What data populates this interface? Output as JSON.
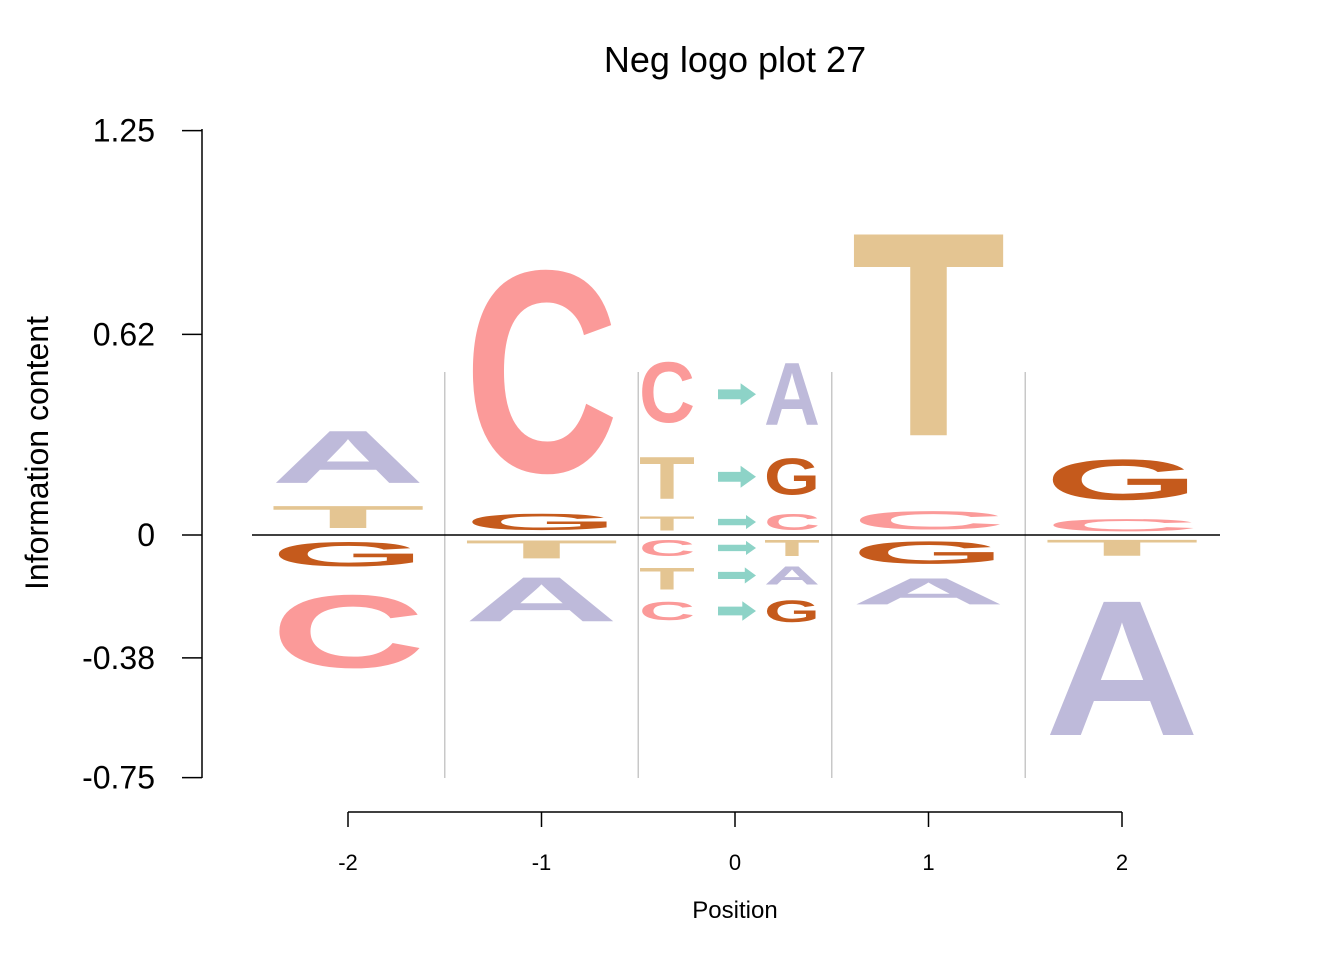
{
  "chart_data": {
    "type": "logo",
    "title": "Neg logo plot 27",
    "xlabel": "Position",
    "ylabel": "Information content",
    "yticks": [
      "1.25",
      "0.62",
      "0",
      "-0.38",
      "-0.75"
    ],
    "ytick_values": [
      1.25,
      0.62,
      0,
      -0.38,
      -0.75
    ],
    "ylim": [
      -0.75,
      1.25
    ],
    "xticks": [
      "-2",
      "-1",
      "0",
      "1",
      "2"
    ],
    "colors": {
      "A": "#bebada",
      "C": "#fb9a99",
      "G": "#c55a1c",
      "T": "#e4c592",
      "arrow": "#8dd3c7"
    },
    "positions": [
      {
        "x": -2,
        "stack": [
          {
            "letter": "A",
            "start": 0.11,
            "end": 0.37
          },
          {
            "letter": "T",
            "start": 0.0,
            "end": 0.11
          },
          {
            "letter": "G",
            "start": -0.12,
            "end": 0.0
          },
          {
            "letter": "C",
            "start": -0.48,
            "end": -0.12
          }
        ]
      },
      {
        "x": -1,
        "stack": [
          {
            "letter": "C",
            "start": 0.0,
            "end": 1.0
          },
          {
            "letter": "G",
            "start": 0.0,
            "end": 0.08
          },
          {
            "letter": "T",
            "start": -0.09,
            "end": 0.0
          },
          {
            "letter": "A",
            "start": -0.31,
            "end": -0.09
          }
        ]
      },
      {
        "x": 0,
        "substitution": true,
        "from_stack": [
          {
            "letter": "C",
            "start": 0.29,
            "end": 0.59
          },
          {
            "letter": "T",
            "start": 0.07,
            "end": 0.28
          },
          {
            "letter": "T",
            "start": 0.0,
            "end": 0.07
          },
          {
            "letter": "C",
            "start": -0.08,
            "end": 0.0
          },
          {
            "letter": "T",
            "start": -0.19,
            "end": -0.08
          },
          {
            "letter": "C",
            "start": -0.28,
            "end": -0.19
          }
        ],
        "to_stack": [
          {
            "letter": "A",
            "start": 0.28,
            "end": 0.59
          },
          {
            "letter": "G",
            "start": 0.09,
            "end": 0.27
          },
          {
            "letter": "C",
            "start": 0.0,
            "end": 0.08
          },
          {
            "letter": "T",
            "start": -0.08,
            "end": 0.0
          },
          {
            "letter": "A",
            "start": -0.17,
            "end": -0.08
          },
          {
            "letter": "G",
            "start": -0.29,
            "end": -0.18
          }
        ]
      },
      {
        "x": 1,
        "stack": [
          {
            "letter": "T",
            "start": 0.11,
            "end": 1.12
          },
          {
            "letter": "C",
            "start": 0.0,
            "end": 0.09
          },
          {
            "letter": "G",
            "start": -0.11,
            "end": 0.0
          },
          {
            "letter": "A",
            "start": -0.24,
            "end": -0.11
          }
        ]
      },
      {
        "x": 2,
        "stack": [
          {
            "letter": "G",
            "start": 0.07,
            "end": 0.27
          },
          {
            "letter": "C",
            "start": 0.0,
            "end": 0.06
          },
          {
            "letter": "T",
            "start": -0.08,
            "end": 0.0
          },
          {
            "letter": "A",
            "start": -0.75,
            "end": -0.08
          }
        ]
      }
    ]
  }
}
